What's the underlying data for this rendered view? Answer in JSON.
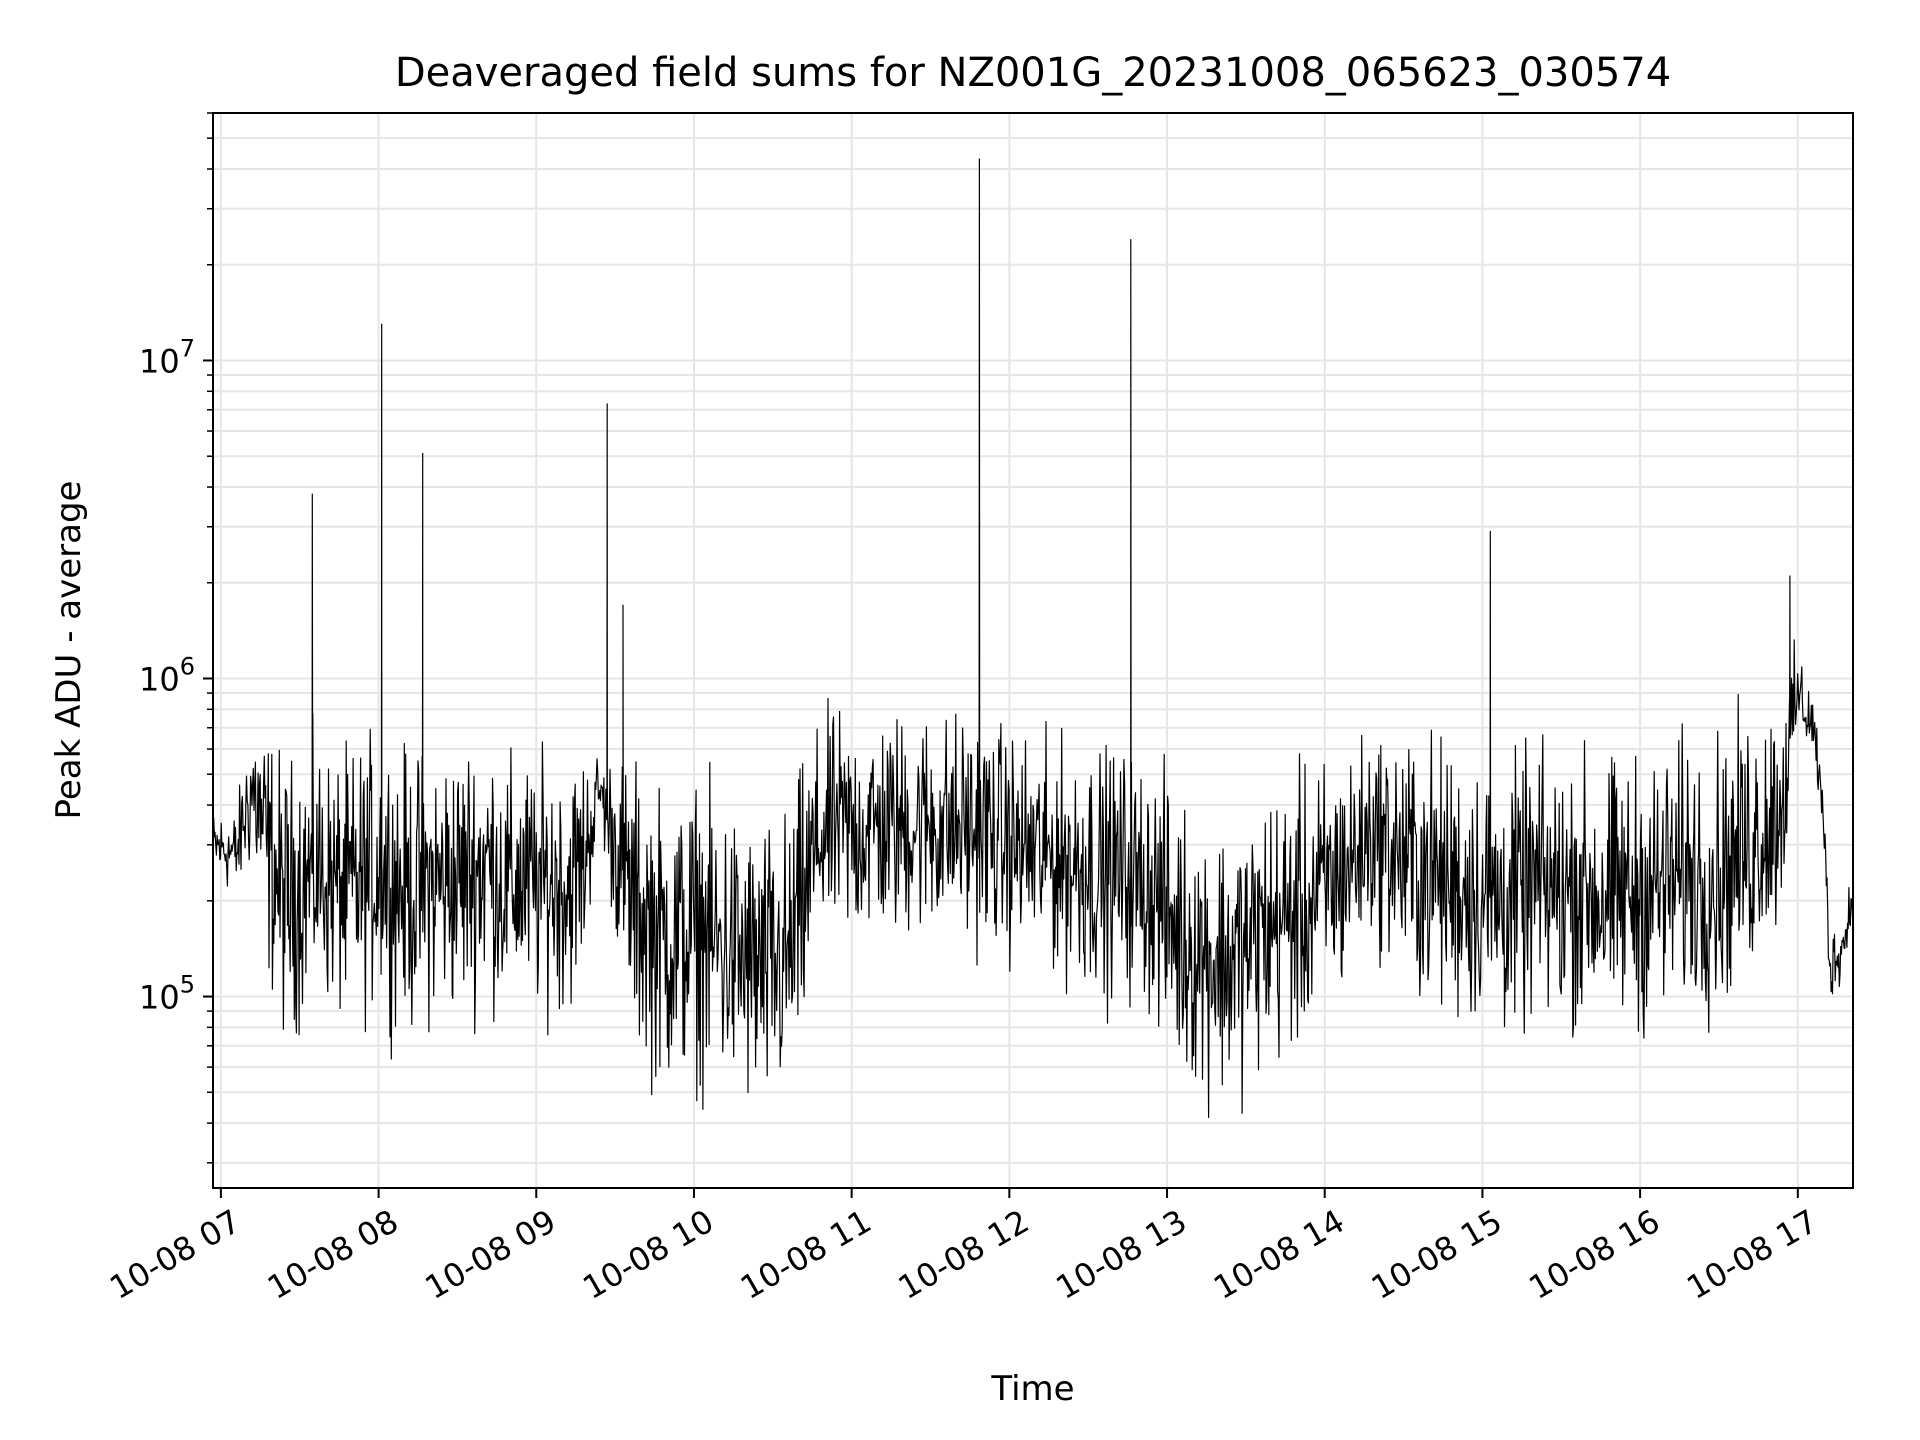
{
  "chart_data": {
    "type": "line",
    "title": "Deaveraged field sums for NZ001G_20231008_065623_030574",
    "xlabel": "Time",
    "ylabel": "Peak ADU - average",
    "yscale": "log",
    "ylim": [
      25000,
      60000000
    ],
    "xlim_hours": [
      6.95,
      17.35
    ],
    "grid": true,
    "line_color": "#000000",
    "x_ticks": [
      {
        "label": "10-08 07",
        "hour": 7
      },
      {
        "label": "10-08 08",
        "hour": 8
      },
      {
        "label": "10-08 09",
        "hour": 9
      },
      {
        "label": "10-08 10",
        "hour": 10
      },
      {
        "label": "10-08 11",
        "hour": 11
      },
      {
        "label": "10-08 12",
        "hour": 12
      },
      {
        "label": "10-08 13",
        "hour": 13
      },
      {
        "label": "10-08 14",
        "hour": 14
      },
      {
        "label": "10-08 15",
        "hour": 15
      },
      {
        "label": "10-08 16",
        "hour": 16
      },
      {
        "label": "10-08 17",
        "hour": 17
      }
    ],
    "y_ticks": [
      {
        "base": "10",
        "exp": "5",
        "value": 100000
      },
      {
        "base": "10",
        "exp": "6",
        "value": 1000000
      },
      {
        "base": "10",
        "exp": "7",
        "value": 10000000
      }
    ],
    "series": [
      {
        "x_hours": [
          6.95,
          7.1,
          7.2,
          7.3,
          7.4,
          7.5,
          7.6,
          7.7,
          7.8,
          7.9,
          8.0,
          8.1,
          8.2,
          8.3,
          8.4,
          8.5,
          8.6,
          8.7,
          8.8,
          8.9,
          9.0,
          9.1,
          9.2,
          9.3,
          9.4,
          9.5,
          9.6,
          9.7,
          9.8,
          9.9,
          10.0,
          10.1,
          10.2,
          10.3,
          10.4,
          10.5,
          10.6,
          10.7,
          10.8,
          10.9,
          11.0,
          11.1,
          11.2,
          11.3,
          11.4,
          11.5,
          11.6,
          11.7,
          11.8,
          11.9,
          12.0,
          12.1,
          12.2,
          12.3,
          12.4,
          12.5,
          12.6,
          12.7,
          12.8,
          12.9,
          13.0,
          13.1,
          13.2,
          13.3,
          13.4,
          13.5,
          13.6,
          13.7,
          13.8,
          13.9,
          14.0,
          14.1,
          14.2,
          14.3,
          14.4,
          14.5,
          14.6,
          14.7,
          14.8,
          14.9,
          15.0,
          15.1,
          15.2,
          15.3,
          15.4,
          15.5,
          15.6,
          15.7,
          15.8,
          15.9,
          16.0,
          16.1,
          16.2,
          16.3,
          16.4,
          16.5,
          16.6,
          16.7,
          16.8,
          16.9,
          17.0,
          17.1,
          17.2,
          17.3,
          17.35
        ],
        "median": [
          300000,
          280000,
          450000,
          280000,
          200000,
          220000,
          250000,
          230000,
          210000,
          230000,
          260000,
          230000,
          210000,
          220000,
          230000,
          230000,
          250000,
          260000,
          220000,
          230000,
          220000,
          230000,
          220000,
          260000,
          450000,
          300000,
          200000,
          170000,
          150000,
          150000,
          160000,
          150000,
          140000,
          130000,
          120000,
          120000,
          130000,
          200000,
          320000,
          340000,
          330000,
          340000,
          340000,
          340000,
          350000,
          350000,
          340000,
          340000,
          330000,
          320000,
          300000,
          290000,
          280000,
          270000,
          260000,
          260000,
          240000,
          250000,
          230000,
          220000,
          180000,
          150000,
          140000,
          130000,
          130000,
          140000,
          160000,
          170000,
          180000,
          190000,
          220000,
          240000,
          280000,
          320000,
          300000,
          270000,
          250000,
          240000,
          230000,
          220000,
          210000,
          200000,
          200000,
          220000,
          220000,
          210000,
          220000,
          210000,
          200000,
          210000,
          210000,
          220000,
          230000,
          250000,
          230000,
          240000,
          270000,
          300000,
          350000,
          400000,
          900000,
          700000,
          120000,
          150000,
          220000
        ],
        "spread": [
          0.15,
          0.2,
          0.35,
          0.55,
          0.6,
          0.6,
          0.55,
          0.55,
          0.6,
          0.6,
          0.6,
          0.6,
          0.6,
          0.6,
          0.6,
          0.6,
          0.6,
          0.6,
          0.55,
          0.55,
          0.55,
          0.55,
          0.55,
          0.5,
          0.15,
          0.4,
          0.6,
          0.65,
          0.65,
          0.65,
          0.65,
          0.65,
          0.65,
          0.65,
          0.65,
          0.65,
          0.65,
          0.6,
          0.5,
          0.5,
          0.5,
          0.5,
          0.5,
          0.5,
          0.5,
          0.5,
          0.5,
          0.5,
          0.5,
          0.5,
          0.5,
          0.5,
          0.5,
          0.5,
          0.55,
          0.55,
          0.55,
          0.55,
          0.55,
          0.55,
          0.6,
          0.6,
          0.6,
          0.6,
          0.6,
          0.6,
          0.6,
          0.6,
          0.6,
          0.6,
          0.55,
          0.55,
          0.5,
          0.45,
          0.5,
          0.55,
          0.6,
          0.6,
          0.6,
          0.6,
          0.6,
          0.6,
          0.6,
          0.6,
          0.6,
          0.6,
          0.6,
          0.6,
          0.6,
          0.6,
          0.6,
          0.6,
          0.6,
          0.6,
          0.6,
          0.6,
          0.6,
          0.6,
          0.55,
          0.5,
          0.2,
          0.15,
          0.15,
          0.15,
          0.15
        ],
        "spikes": [
          {
            "hour": 7.58,
            "value": 3800000
          },
          {
            "hour": 8.02,
            "value": 13000000
          },
          {
            "hour": 8.28,
            "value": 5100000
          },
          {
            "hour": 9.45,
            "value": 7300000
          },
          {
            "hour": 9.55,
            "value": 1700000
          },
          {
            "hour": 11.81,
            "value": 43000000
          },
          {
            "hour": 12.77,
            "value": 24000000
          },
          {
            "hour": 15.05,
            "value": 2900000
          },
          {
            "hour": 16.95,
            "value": 2100000
          }
        ]
      }
    ]
  }
}
